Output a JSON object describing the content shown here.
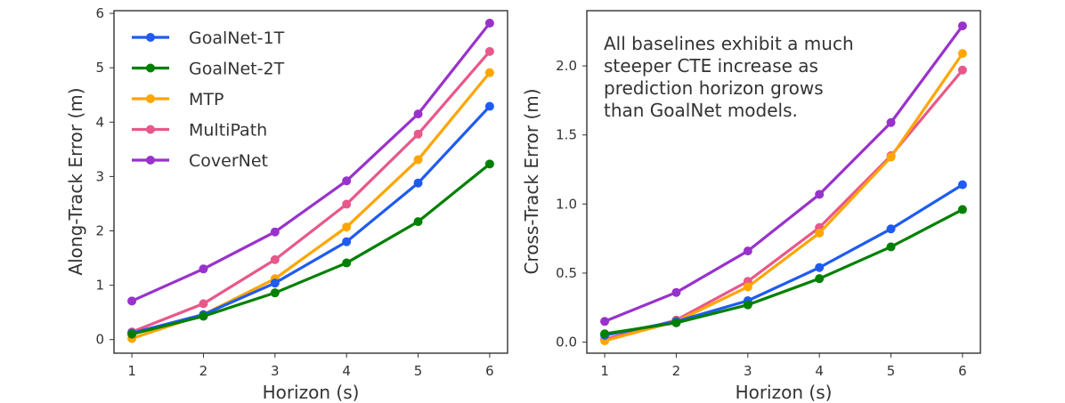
{
  "chart_data": [
    {
      "type": "line",
      "id": "along-track",
      "ylabel": "Along-Track Error (m)",
      "xlabel": "Horizon (s)",
      "x": [
        1,
        2,
        3,
        4,
        5,
        6
      ],
      "xlim": [
        0.75,
        6.25
      ],
      "ylim": [
        -0.25,
        6.05
      ],
      "yticks": [
        0,
        1,
        2,
        3,
        4,
        5,
        6
      ],
      "xticks": [
        1,
        2,
        3,
        4,
        5,
        6
      ],
      "legend": "top-left",
      "series": [
        {
          "name": "CoverNet",
          "color": "#9932cc",
          "values": [
            0.71,
            1.3,
            1.98,
            2.92,
            4.15,
            5.82
          ]
        },
        {
          "name": "MultiPath",
          "color": "#e8588a",
          "values": [
            0.14,
            0.66,
            1.47,
            2.49,
            3.78,
            5.3
          ]
        },
        {
          "name": "MTP",
          "color": "#ffa500",
          "values": [
            0.02,
            0.46,
            1.12,
            2.07,
            3.31,
            4.91
          ]
        },
        {
          "name": "GoalNet-1T",
          "color": "#1f5bf2",
          "values": [
            0.12,
            0.46,
            1.04,
            1.8,
            2.88,
            4.29
          ]
        },
        {
          "name": "GoalNet-2T",
          "color": "#008000",
          "values": [
            0.1,
            0.43,
            0.86,
            1.41,
            2.17,
            3.23
          ]
        }
      ],
      "legend_order": [
        "GoalNet-1T",
        "GoalNet-2T",
        "MTP",
        "MultiPath",
        "CoverNet"
      ]
    },
    {
      "type": "line",
      "id": "cross-track",
      "ylabel": "Cross-Track Error (m)",
      "xlabel": "Horizon (s)",
      "x": [
        1,
        2,
        3,
        4,
        5,
        6
      ],
      "xlim": [
        0.75,
        6.25
      ],
      "ylim": [
        -0.08,
        2.4
      ],
      "yticks": [
        "0.0",
        "0.5",
        "1.0",
        "1.5",
        "2.0"
      ],
      "xticks": [
        1,
        2,
        3,
        4,
        5,
        6
      ],
      "annotation": [
        "All baselines exhibit a much",
        "steeper CTE increase as",
        "prediction horizon grows",
        "than GoalNet models."
      ],
      "series": [
        {
          "name": "CoverNet",
          "color": "#9932cc",
          "values": [
            0.15,
            0.36,
            0.66,
            1.07,
            1.59,
            2.29
          ]
        },
        {
          "name": "MultiPath",
          "color": "#e8588a",
          "values": [
            0.02,
            0.16,
            0.44,
            0.83,
            1.35,
            1.97
          ]
        },
        {
          "name": "MTP",
          "color": "#ffa500",
          "values": [
            0.01,
            0.15,
            0.4,
            0.79,
            1.34,
            2.09
          ]
        },
        {
          "name": "GoalNet-1T",
          "color": "#1f5bf2",
          "values": [
            0.05,
            0.15,
            0.3,
            0.54,
            0.82,
            1.14
          ]
        },
        {
          "name": "GoalNet-2T",
          "color": "#008000",
          "values": [
            0.06,
            0.14,
            0.27,
            0.46,
            0.69,
            0.96
          ]
        }
      ]
    }
  ]
}
